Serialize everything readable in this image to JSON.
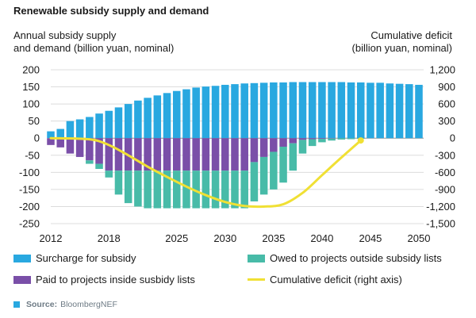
{
  "chart_data": {
    "type": "bar",
    "title": "Renewable subsidy supply and demand",
    "ylabel_left_line1": "Annual subsidy supply",
    "ylabel_left_line2": "and demand (billion yuan, nominal)",
    "ylabel_right_line1": "Cumulative deficit",
    "ylabel_right_line2": "(billion yuan, nominal)",
    "ylim_left": [
      -250,
      200
    ],
    "ylim_right": [
      -1500,
      1200
    ],
    "yticks_left": [
      "200",
      "150",
      "100",
      "50",
      "0",
      "-50",
      "-100",
      "-150",
      "-200",
      "-250"
    ],
    "yticks_right": [
      "1,200",
      "900",
      "600",
      "300",
      "0",
      "-300",
      "-600",
      "-900",
      "-1,200",
      "-1,500"
    ],
    "xticks": [
      "2012",
      "2018",
      "2025",
      "2030",
      "2035",
      "2040",
      "2045",
      "2050"
    ],
    "xticks_values": [
      2012,
      2018,
      2025,
      2030,
      2035,
      2040,
      2045,
      2050
    ],
    "x": [
      2012,
      2013,
      2014,
      2015,
      2016,
      2017,
      2018,
      2019,
      2020,
      2021,
      2022,
      2023,
      2024,
      2025,
      2026,
      2027,
      2028,
      2029,
      2030,
      2031,
      2032,
      2033,
      2034,
      2035,
      2036,
      2037,
      2038,
      2039,
      2040,
      2041,
      2042,
      2043,
      2044,
      2045,
      2046,
      2047,
      2048,
      2049,
      2050
    ],
    "grid": true,
    "legend_position": "bottom",
    "series": [
      {
        "name": "Surcharge for subsidy",
        "color": "#29a8e0",
        "values": [
          20,
          27,
          50,
          55,
          62,
          72,
          80,
          90,
          100,
          110,
          118,
          125,
          132,
          138,
          143,
          148,
          151,
          153,
          156,
          158,
          160,
          161,
          162,
          163,
          163,
          164,
          164,
          164,
          164,
          164,
          164,
          163,
          163,
          162,
          162,
          160,
          159,
          158,
          156
        ]
      },
      {
        "name": "Paid to projects inside susbidy lists",
        "color": "#7a4fa8",
        "values": [
          -20,
          -27,
          -45,
          -55,
          -65,
          -75,
          -95,
          -95,
          -95,
          -95,
          -95,
          -95,
          -95,
          -95,
          -95,
          -95,
          -95,
          -95,
          -95,
          -95,
          -95,
          -70,
          -55,
          -40,
          -25,
          -15,
          -5,
          -3,
          -2,
          -1,
          0,
          0,
          0,
          0,
          0,
          0,
          0,
          0,
          0
        ]
      },
      {
        "name": "Owed to projects outside subsidy lists",
        "color": "#48bba8",
        "values": [
          0,
          0,
          0,
          0,
          -10,
          -15,
          -20,
          -70,
          -95,
          -105,
          -110,
          -110,
          -110,
          -110,
          -110,
          -110,
          -110,
          -110,
          -110,
          -110,
          -110,
          -115,
          -110,
          -110,
          -105,
          -80,
          -40,
          -20,
          -10,
          -6,
          -4,
          -3,
          -2,
          0,
          0,
          0,
          0,
          0,
          0
        ]
      },
      {
        "name": "Cumulative deficit (right axis)",
        "color": "#f0e034",
        "axis": "right",
        "x": [
          2012,
          2016,
          2018,
          2020,
          2022,
          2024,
          2026,
          2028,
          2030,
          2032,
          2034,
          2036,
          2038,
          2040,
          2042,
          2044
        ],
        "values": [
          0,
          -20,
          -120,
          -300,
          -500,
          -680,
          -850,
          -1000,
          -1120,
          -1190,
          -1200,
          -1160,
          -960,
          -650,
          -340,
          -40
        ]
      }
    ]
  },
  "source": {
    "label": "Source:",
    "text": "BloombergNEF",
    "color": "#29a8e0"
  }
}
